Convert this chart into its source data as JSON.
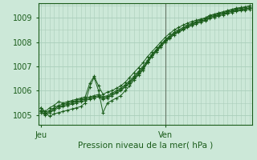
{
  "xlabel": "Pression niveau de la mer( hPa )",
  "background_color": "#cce8d8",
  "grid_color": "#aacebb",
  "line_color": "#1a5c1a",
  "ylim": [
    1004.6,
    1009.6
  ],
  "xlim": [
    -0.5,
    47.5
  ],
  "yticks": [
    1005,
    1006,
    1007,
    1008,
    1009
  ],
  "xtick_positions": [
    0,
    28
  ],
  "xtick_labels": [
    "Jeu",
    "Ven"
  ],
  "vline_x": 28,
  "series": [
    [
      1005.3,
      1005.15,
      1005.3,
      1005.4,
      1005.55,
      1005.5,
      1005.55,
      1005.6,
      1005.65,
      1005.7,
      1005.75,
      1006.3,
      1006.6,
      1006.2,
      1005.85,
      1005.95,
      1006.0,
      1006.1,
      1006.2,
      1006.35,
      1006.55,
      1006.75,
      1006.95,
      1007.15,
      1007.4,
      1007.6,
      1007.8,
      1008.0,
      1008.2,
      1008.35,
      1008.5,
      1008.6,
      1008.7,
      1008.78,
      1008.85,
      1008.9,
      1008.95,
      1009.0,
      1009.1,
      1009.15,
      1009.2,
      1009.25,
      1009.3,
      1009.35,
      1009.4,
      1009.42,
      1009.45,
      1009.5
    ],
    [
      1005.2,
      1005.1,
      1005.2,
      1005.3,
      1005.4,
      1005.45,
      1005.5,
      1005.55,
      1005.6,
      1005.65,
      1005.7,
      1005.75,
      1005.8,
      1005.85,
      1005.75,
      1005.8,
      1005.9,
      1006.0,
      1006.1,
      1006.25,
      1006.4,
      1006.6,
      1006.8,
      1007.0,
      1007.25,
      1007.5,
      1007.7,
      1007.9,
      1008.1,
      1008.25,
      1008.4,
      1008.5,
      1008.6,
      1008.7,
      1008.78,
      1008.85,
      1008.92,
      1008.97,
      1009.07,
      1009.12,
      1009.17,
      1009.22,
      1009.27,
      1009.32,
      1009.37,
      1009.39,
      1009.42,
      1009.45
    ],
    [
      1005.15,
      1005.05,
      1005.15,
      1005.25,
      1005.35,
      1005.4,
      1005.45,
      1005.5,
      1005.55,
      1005.6,
      1005.65,
      1005.7,
      1005.75,
      1005.8,
      1005.7,
      1005.75,
      1005.85,
      1005.95,
      1006.05,
      1006.2,
      1006.35,
      1006.55,
      1006.75,
      1006.95,
      1007.2,
      1007.45,
      1007.65,
      1007.85,
      1008.05,
      1008.2,
      1008.35,
      1008.45,
      1008.55,
      1008.65,
      1008.73,
      1008.8,
      1008.87,
      1008.92,
      1009.02,
      1009.07,
      1009.12,
      1009.17,
      1009.22,
      1009.27,
      1009.32,
      1009.34,
      1009.37,
      1009.4
    ],
    [
      1005.1,
      1005.0,
      1005.1,
      1005.2,
      1005.3,
      1005.35,
      1005.4,
      1005.45,
      1005.5,
      1005.55,
      1005.6,
      1005.65,
      1005.7,
      1005.75,
      1005.65,
      1005.7,
      1005.8,
      1005.9,
      1006.0,
      1006.15,
      1006.3,
      1006.5,
      1006.7,
      1006.9,
      1007.15,
      1007.4,
      1007.6,
      1007.8,
      1008.0,
      1008.15,
      1008.3,
      1008.4,
      1008.5,
      1008.6,
      1008.68,
      1008.75,
      1008.82,
      1008.87,
      1008.97,
      1009.02,
      1009.07,
      1009.12,
      1009.17,
      1009.22,
      1009.27,
      1009.29,
      1009.32,
      1009.35
    ],
    [
      1005.3,
      1005.1,
      1004.95,
      1005.05,
      1005.1,
      1005.15,
      1005.2,
      1005.25,
      1005.3,
      1005.35,
      1005.5,
      1006.15,
      1006.55,
      1006.0,
      1005.1,
      1005.5,
      1005.6,
      1005.7,
      1005.8,
      1006.0,
      1006.2,
      1006.45,
      1006.65,
      1006.85,
      1007.15,
      1007.45,
      1007.65,
      1007.85,
      1008.05,
      1008.2,
      1008.35,
      1008.45,
      1008.55,
      1008.65,
      1008.73,
      1008.8,
      1008.87,
      1008.92,
      1009.02,
      1009.07,
      1009.12,
      1009.17,
      1009.22,
      1009.27,
      1009.32,
      1009.34,
      1009.37,
      1009.4
    ]
  ]
}
